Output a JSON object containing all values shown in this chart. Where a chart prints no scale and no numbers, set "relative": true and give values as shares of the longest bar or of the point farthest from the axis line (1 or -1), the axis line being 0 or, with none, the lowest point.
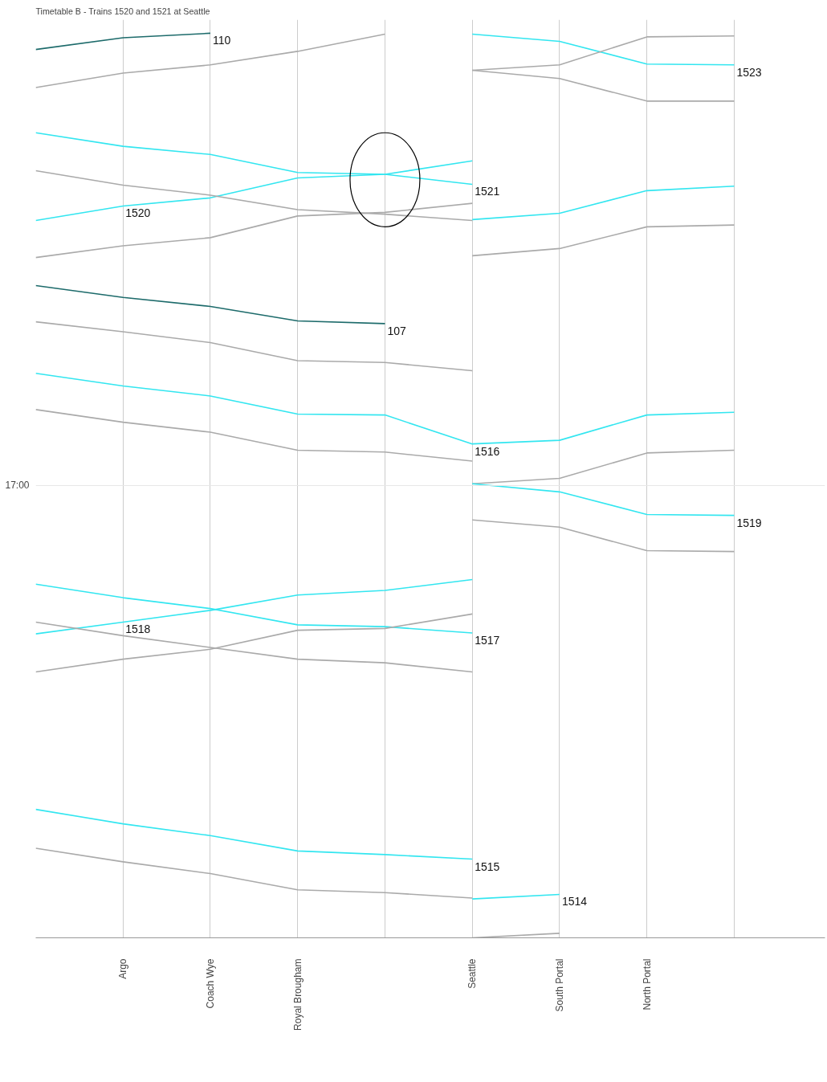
{
  "chart_data": {
    "type": "line",
    "title": "Timetable B - Trains 1520 and 1521 at Seattle",
    "relative": true,
    "grid": "x",
    "categories": [
      null,
      "Argo",
      "Coach Wye",
      "Royal Brougham",
      null,
      "Seattle",
      "South Portal",
      "North Portal",
      null
    ],
    "ref_lines": [
      {
        "axis": "y",
        "value": 0.5,
        "label": "17:00",
        "color": "#e6e6e6"
      }
    ],
    "annotations": [
      {
        "text": "1520",
        "x": "Argo",
        "y": 0.809
      },
      {
        "text": "1516",
        "x": "Seattle",
        "y": 0.546
      },
      {
        "text": "1518",
        "x": "Argo",
        "y": 0.349
      }
    ],
    "series": [
      {
        "name": "110",
        "color": "#1d6b6b",
        "values": [
          0.982,
          0.995,
          1.0,
          null,
          null,
          null,
          null,
          null,
          null
        ]
      },
      {
        "color": "#aaaaaa",
        "values": [
          0.94,
          0.956,
          0.965,
          0.98,
          0.999,
          null,
          null,
          null,
          null
        ]
      },
      {
        "name": "1523",
        "color": "#33e6f0",
        "values": [
          null,
          null,
          null,
          null,
          null,
          0.999,
          0.991,
          0.966,
          0.965
        ]
      },
      {
        "color": "#aaaaaa",
        "values": [
          null,
          null,
          null,
          null,
          null,
          0.959,
          0.965,
          0.996,
          0.997
        ]
      },
      {
        "color": "#aaaaaa",
        "values": [
          null,
          null,
          null,
          null,
          null,
          0.959,
          0.95,
          0.925,
          0.925
        ]
      },
      {
        "color": "#33e6f0",
        "values": [
          0.793,
          0.809,
          0.818,
          0.84,
          0.844,
          0.859,
          null,
          null,
          null
        ]
      },
      {
        "name": "1521",
        "color": "#33e6f0",
        "values": [
          0.89,
          0.875,
          0.866,
          0.846,
          0.844,
          0.833,
          null,
          null,
          null
        ]
      },
      {
        "color": "#aaaaaa",
        "values": [
          0.848,
          0.832,
          0.821,
          0.805,
          0.8,
          0.793,
          null,
          null,
          null
        ]
      },
      {
        "color": "#aaaaaa",
        "values": [
          0.752,
          0.765,
          0.774,
          0.798,
          0.802,
          0.812,
          null,
          null,
          null
        ]
      },
      {
        "color": "#33e6f0",
        "values": [
          null,
          null,
          null,
          null,
          null,
          0.794,
          0.801,
          0.826,
          0.831
        ]
      },
      {
        "color": "#aaaaaa",
        "values": [
          null,
          null,
          null,
          null,
          null,
          0.754,
          0.762,
          0.786,
          0.788
        ]
      },
      {
        "name": "107",
        "color": "#1d6b6b",
        "values": [
          0.721,
          0.708,
          0.698,
          0.682,
          0.679,
          null,
          null,
          null,
          null
        ]
      },
      {
        "color": "#aaaaaa",
        "values": [
          0.681,
          0.67,
          0.658,
          0.638,
          0.636,
          0.627,
          null,
          null,
          null
        ]
      },
      {
        "color": "#33e6f0",
        "values": [
          0.624,
          0.61,
          0.599,
          0.579,
          0.578,
          0.546,
          0.55,
          0.578,
          0.581
        ]
      },
      {
        "color": "#aaaaaa",
        "values": [
          0.584,
          0.57,
          0.559,
          0.539,
          0.537,
          0.527,
          null,
          null,
          null
        ]
      },
      {
        "color": "#aaaaaa",
        "values": [
          null,
          null,
          null,
          null,
          null,
          0.502,
          0.508,
          0.536,
          0.539
        ]
      },
      {
        "name": "1519",
        "color": "#33e6f0",
        "values": [
          null,
          null,
          null,
          null,
          null,
          0.502,
          0.493,
          0.468,
          0.467
        ]
      },
      {
        "color": "#aaaaaa",
        "values": [
          null,
          null,
          null,
          null,
          null,
          0.462,
          0.454,
          0.428,
          0.427
        ]
      },
      {
        "color": "#33e6f0",
        "values": [
          0.336,
          0.349,
          0.362,
          0.379,
          0.384,
          0.396,
          null,
          null,
          null
        ]
      },
      {
        "name": "1517",
        "color": "#33e6f0",
        "values": [
          0.391,
          0.376,
          0.364,
          0.346,
          0.344,
          0.337,
          null,
          null,
          null
        ]
      },
      {
        "color": "#aaaaaa",
        "values": [
          0.349,
          0.334,
          0.321,
          0.308,
          0.304,
          0.294,
          null,
          null,
          null
        ]
      },
      {
        "color": "#aaaaaa",
        "values": [
          0.294,
          0.308,
          0.319,
          0.34,
          0.342,
          0.358,
          null,
          null,
          null
        ]
      },
      {
        "name": "1515",
        "color": "#33e6f0",
        "values": [
          0.142,
          0.126,
          0.113,
          0.096,
          0.092,
          0.087,
          null,
          null,
          null
        ]
      },
      {
        "color": "#aaaaaa",
        "values": [
          0.099,
          0.084,
          0.071,
          0.053,
          0.05,
          0.044,
          null,
          null,
          null
        ]
      },
      {
        "name": "1514",
        "color": "#33e6f0",
        "values": [
          null,
          null,
          null,
          null,
          null,
          0.043,
          0.048,
          null,
          null
        ]
      },
      {
        "color": "#aaaaaa",
        "values": [
          null,
          null,
          null,
          null,
          null,
          0.0,
          0.005,
          null,
          null
        ]
      }
    ]
  }
}
